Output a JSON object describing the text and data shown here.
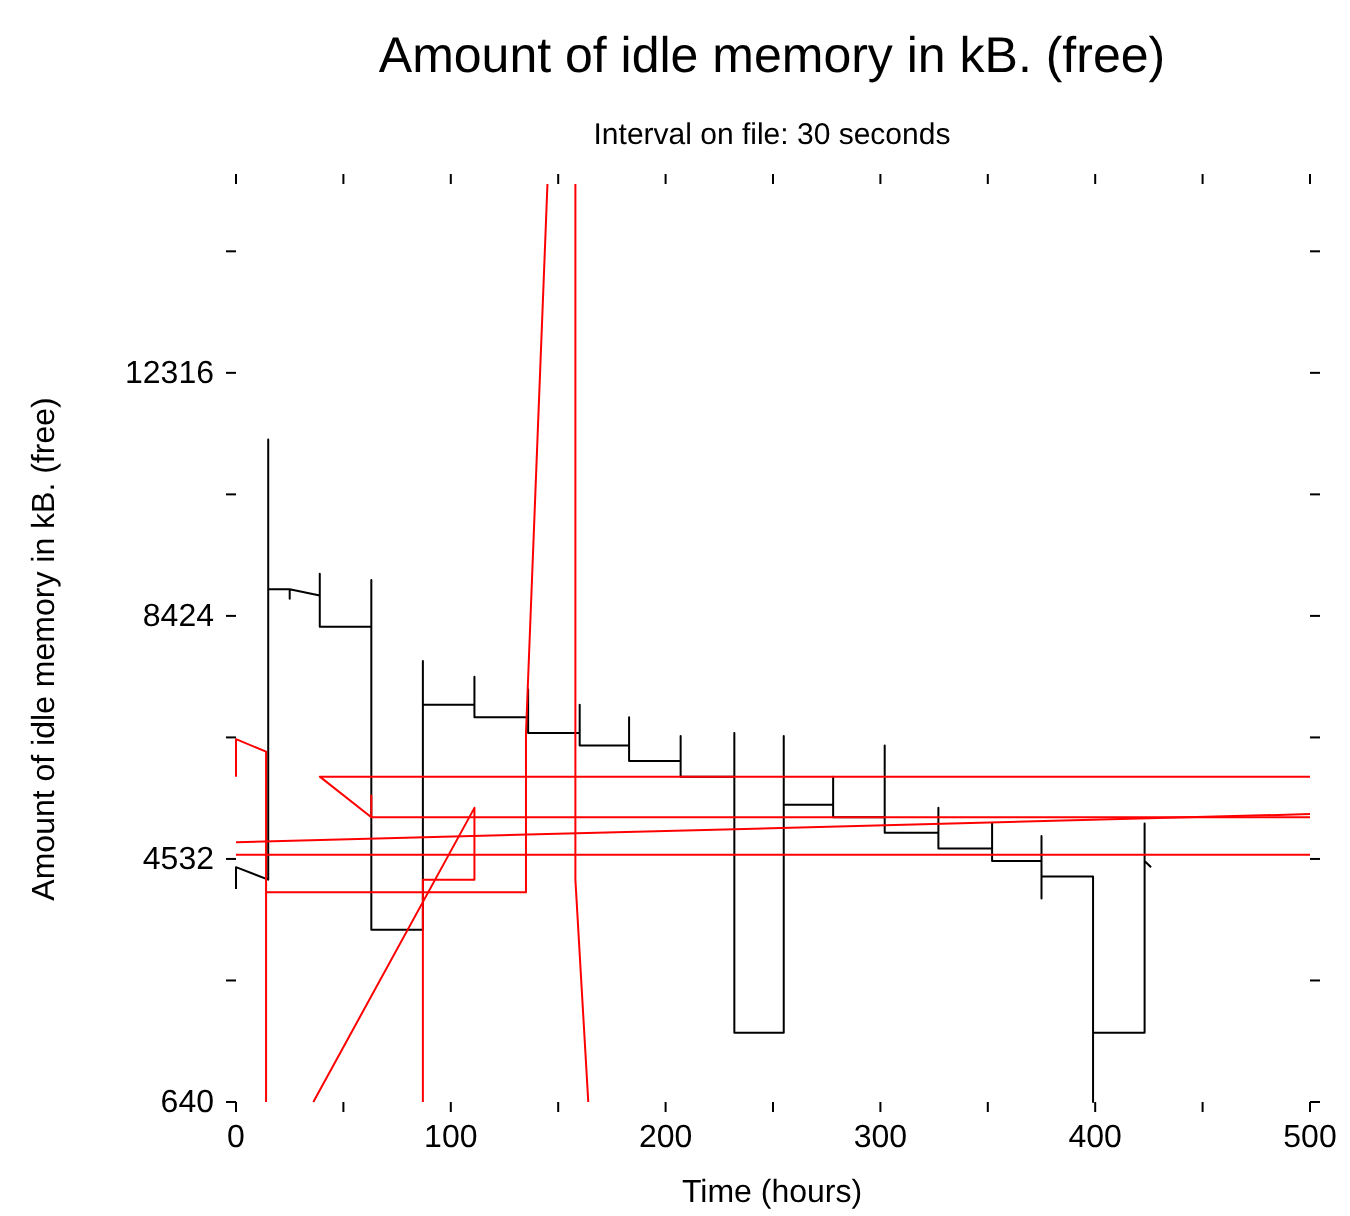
{
  "chart_data": {
    "type": "line",
    "title": "Amount of idle memory in kB. (free)",
    "subtitle": "Interval on file: 30 seconds",
    "xlabel": "Time (hours)",
    "ylabel": "Amount of idle memory in kB. (free)",
    "xlim": [
      0,
      500
    ],
    "xticks": [
      0,
      {
        "value": 50,
        "label": null
      },
      100,
      {
        "value": 150,
        "label": null
      },
      200,
      {
        "value": 250,
        "label": null
      },
      300,
      {
        "value": 350,
        "label": null
      },
      400,
      {
        "value": 450,
        "label": null
      },
      500
    ],
    "ylim": [
      640,
      15340
    ],
    "yticks": [
      640,
      {
        "value": 2586,
        "label": null
      },
      4532,
      {
        "value": 6478,
        "label": null
      },
      8424,
      {
        "value": 10370,
        "label": null
      },
      12316,
      {
        "value": 14262,
        "label": null
      }
    ],
    "marker": "none",
    "line_style": "solid",
    "series": [
      {
        "color": "#000000",
        "x": [
          0,
          0,
          15,
          15,
          15,
          25,
          25,
          25,
          39,
          39,
          39,
          63,
          63,
          63,
          87,
          87,
          87,
          111,
          111,
          111,
          136,
          136,
          136,
          160,
          160,
          160,
          183,
          183,
          183,
          207,
          207,
          207,
          232,
          232,
          232,
          255,
          255,
          255,
          278,
          278,
          278,
          302,
          302,
          302,
          327,
          327,
          327,
          352,
          352,
          352,
          375,
          375,
          375,
          375,
          399,
          399,
          399,
          423,
          423,
          423,
          426
        ],
        "values": [
          4050,
          4400,
          4200,
          11250,
          8850,
          8850,
          8700,
          8850,
          8750,
          9100,
          8250,
          8250,
          9000,
          3400,
          3400,
          7700,
          7000,
          7000,
          7450,
          6800,
          6800,
          7250,
          6550,
          6550,
          7000,
          6350,
          6350,
          6800,
          6100,
          6100,
          6500,
          5850,
          5850,
          6550,
          1750,
          1750,
          6500,
          5400,
          5400,
          5850,
          5200,
          5200,
          6350,
          4950,
          4950,
          5350,
          4700,
          4700,
          5100,
          4500,
          4500,
          4900,
          3900,
          4250,
          4250,
          640,
          1750,
          1750,
          5100,
          4500,
          4400
        ]
      },
      {
        "color": "#ff0000",
        "x": [
          0,
          0,
          14,
          14
        ],
        "values": [
          5850,
          6450,
          6250,
          640
        ]
      },
      {
        "color": "#ff0000",
        "x": [
          14,
          135,
          135,
          145
        ],
        "values": [
          4000,
          4000,
          6550,
          15340
        ]
      },
      {
        "color": "#ff0000",
        "x": [
          500,
          39,
          63,
          63,
          63,
          500
        ],
        "values": [
          5850,
          5850,
          5200,
          5550,
          5200,
          5200
        ]
      },
      {
        "color": "#ff0000",
        "x": [
          0,
          500
        ],
        "values": [
          4800,
          5250
        ]
      },
      {
        "color": "#ff0000",
        "x": [
          0,
          500
        ],
        "values": [
          4600,
          4600
        ]
      },
      {
        "color": "#ff0000",
        "x": [
          87,
          87,
          111,
          111,
          36
        ],
        "values": [
          640,
          4200,
          4200,
          5350,
          640
        ]
      },
      {
        "color": "#ff0000",
        "x": [
          158,
          158,
          164
        ],
        "values": [
          15340,
          4200,
          640
        ]
      }
    ]
  }
}
